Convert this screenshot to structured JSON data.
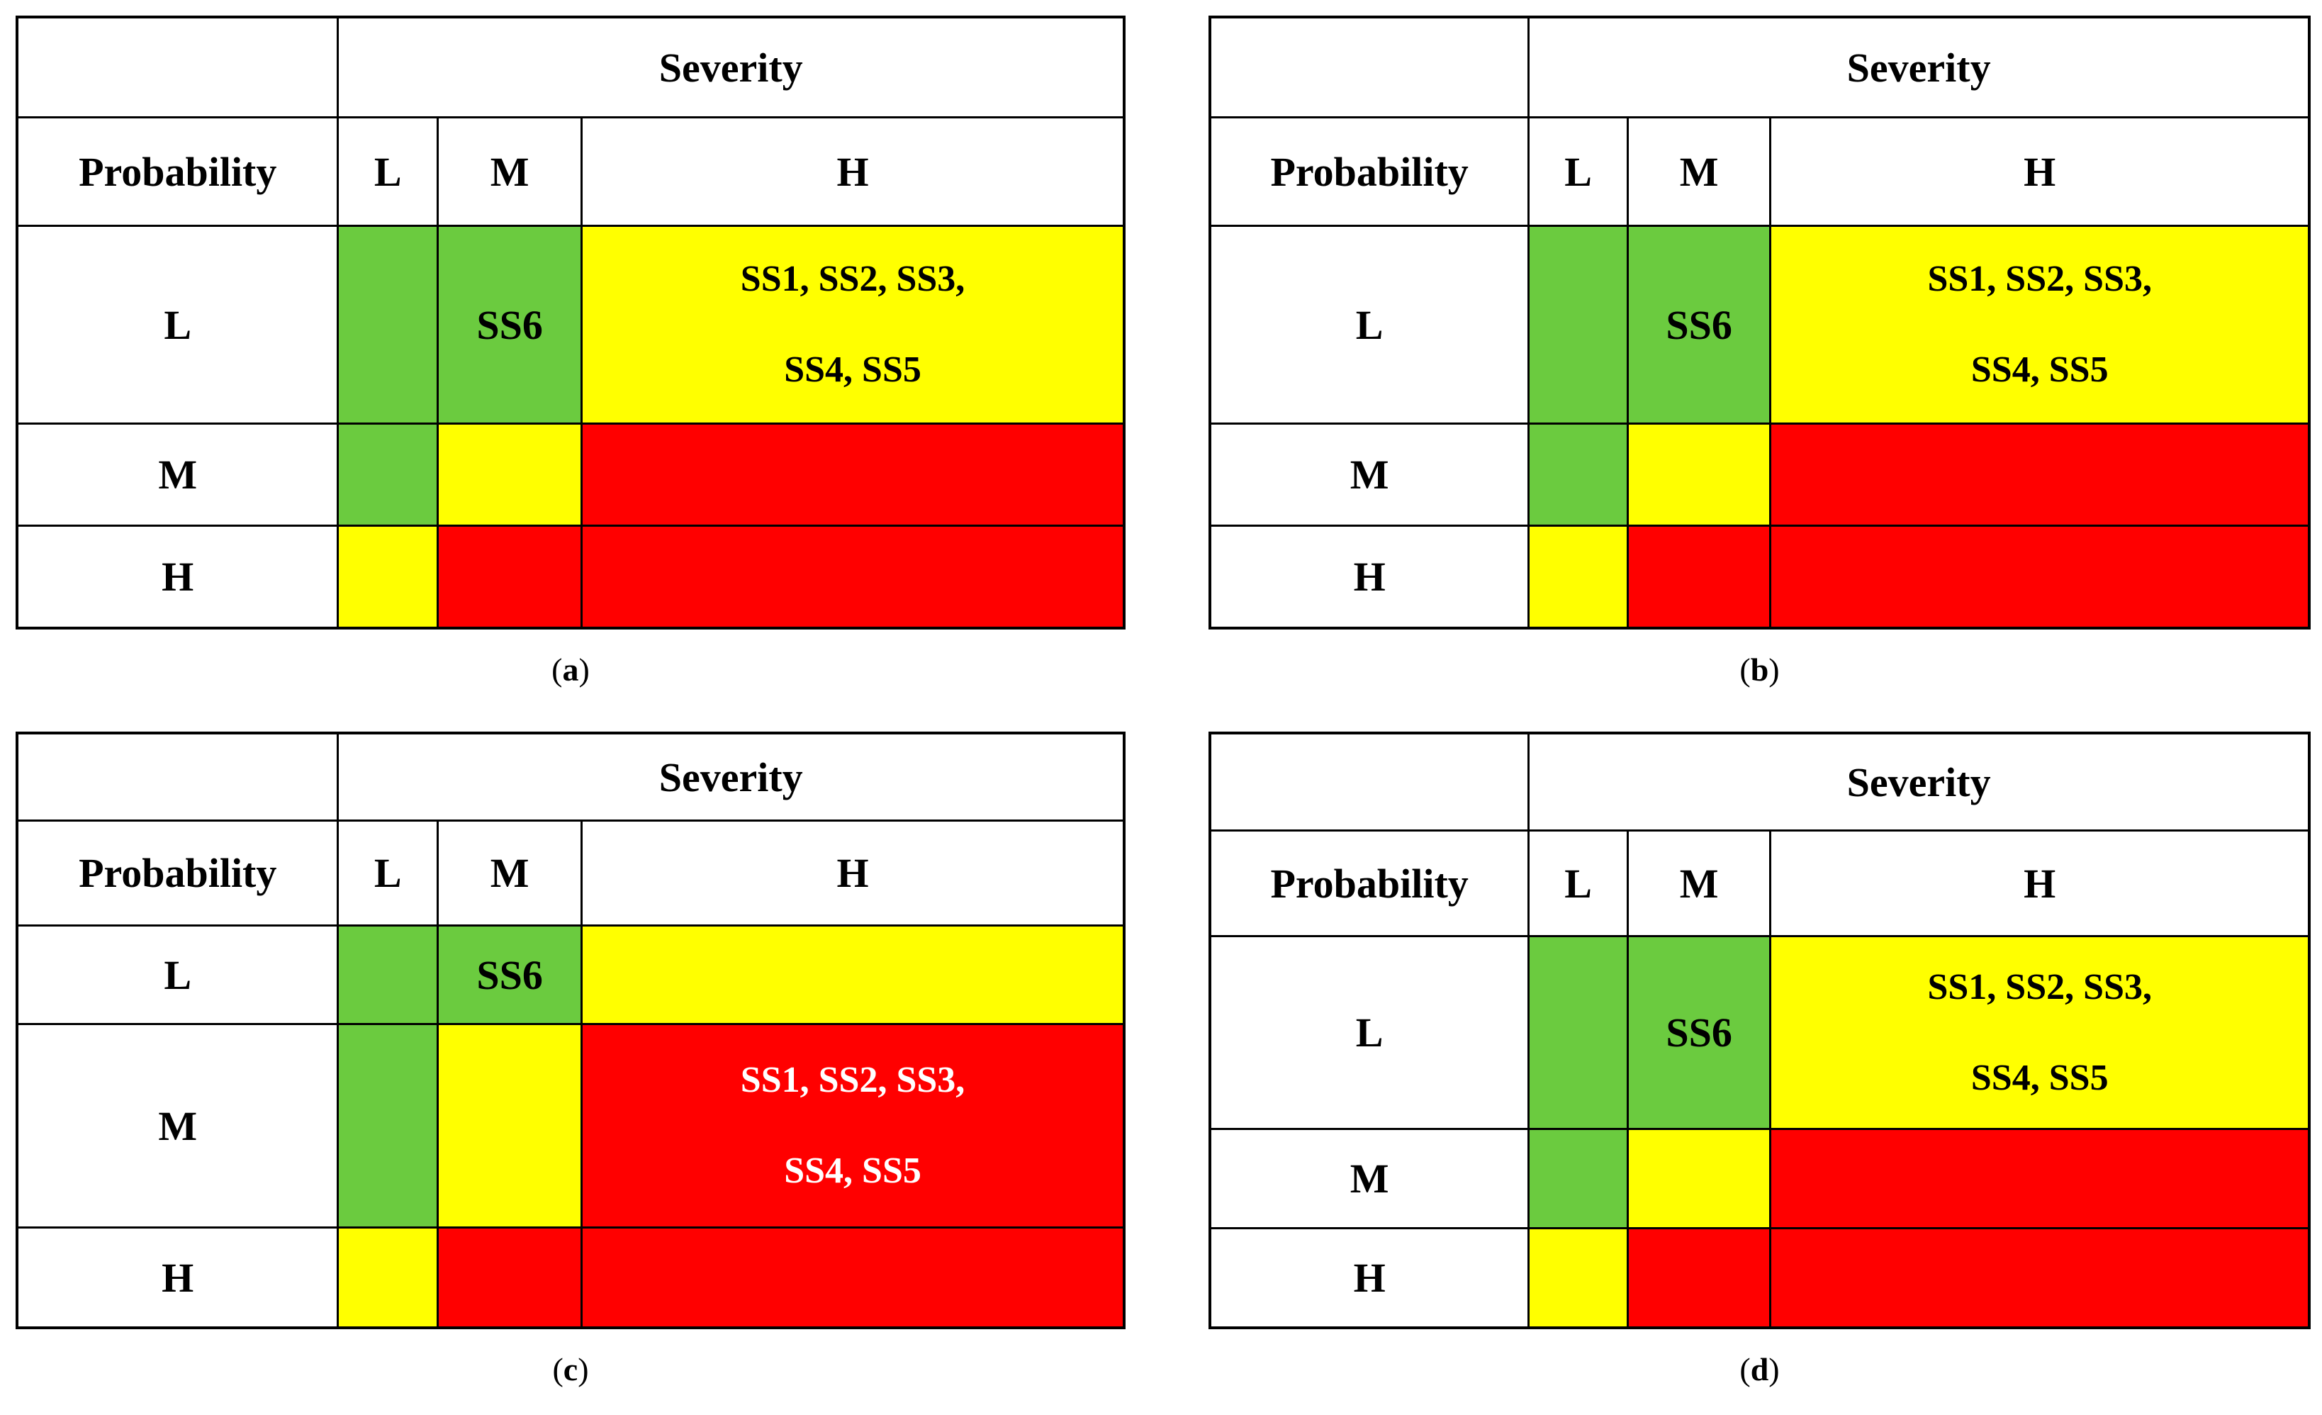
{
  "colors": {
    "green": "#6BCB3F",
    "yellow": "#FFFF00",
    "red": "#FF0000",
    "white": "#FFFFFF",
    "border": "#000000",
    "text": "#000000",
    "text_on_red": "#FFFFFF"
  },
  "labels": {
    "severity": "Severity",
    "probability": "Probability",
    "col_low": "L",
    "col_medium": "M",
    "col_high": "H",
    "row_low": "L",
    "row_medium": "M",
    "row_high": "H",
    "ss6": "SS6",
    "ss_group_line1": "SS1, SS2, SS3,",
    "ss_group_line2": "SS4, SS5"
  },
  "matrix": {
    "rows": [
      "L",
      "M",
      "H"
    ],
    "columns": [
      "L",
      "M",
      "H"
    ],
    "fills": [
      [
        "green",
        "green",
        "yellow"
      ],
      [
        "green",
        "yellow",
        "red"
      ],
      [
        "yellow",
        "red",
        "red"
      ]
    ]
  },
  "panels": [
    {
      "caption_open": "(",
      "caption_letter": "a",
      "caption_close": ")",
      "ss6_cell": "L×M",
      "ss_group_cell": "L×H"
    },
    {
      "caption_open": "(",
      "caption_letter": "b",
      "caption_close": ")",
      "ss6_cell": "L×M",
      "ss_group_cell": "L×H"
    },
    {
      "caption_open": "(",
      "caption_letter": "c",
      "caption_close": ")",
      "ss6_cell": "L×M",
      "ss_group_cell": "M×H"
    },
    {
      "caption_open": "(",
      "caption_letter": "d",
      "caption_close": ")",
      "ss6_cell": "L×M",
      "ss_group_cell": "L×H"
    }
  ]
}
